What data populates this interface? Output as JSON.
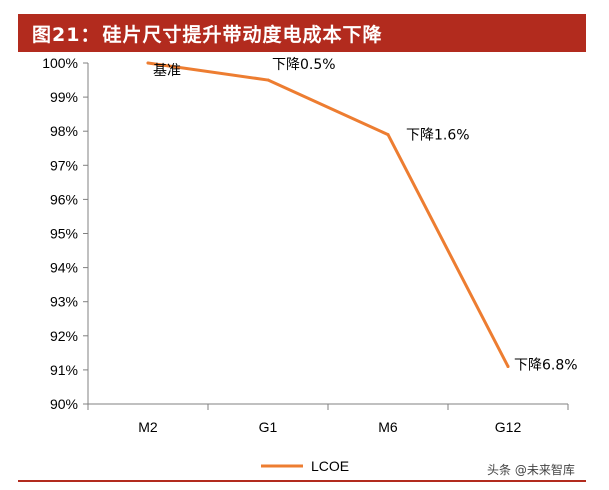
{
  "title": {
    "prefix": "图21：",
    "text": "硅片尺寸提升带动度电成本下降"
  },
  "colors": {
    "title_bg": "#b22b1e",
    "line": "#ed7d31",
    "axis": "#808080",
    "rule": "#b22b1e"
  },
  "chart_data": {
    "type": "line",
    "categories": [
      "M2",
      "G1",
      "M6",
      "G12"
    ],
    "series": [
      {
        "name": "LCOE",
        "values": [
          100.0,
          99.5,
          97.9,
          91.1
        ],
        "color": "#ed7d31"
      }
    ],
    "point_labels": [
      "基准",
      "下降0.5%",
      "下降1.6%",
      "下降6.8%"
    ],
    "ylim": [
      90,
      100
    ],
    "y_ticks": [
      "90%",
      "91%",
      "92%",
      "93%",
      "94%",
      "95%",
      "96%",
      "97%",
      "98%",
      "99%",
      "100%"
    ],
    "y_tick_values": [
      90,
      91,
      92,
      93,
      94,
      95,
      96,
      97,
      98,
      99,
      100
    ],
    "legend_position": "bottom",
    "grid": false
  },
  "watermark": "头条 @未来智库"
}
